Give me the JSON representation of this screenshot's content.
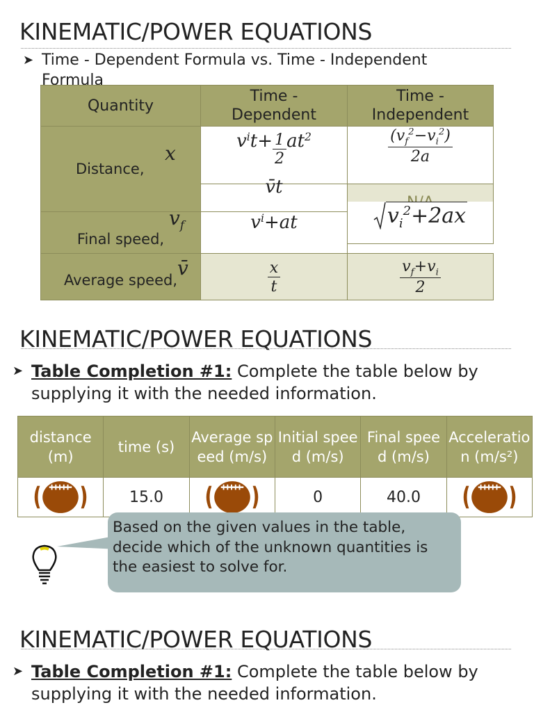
{
  "slides": [
    {
      "title": "KINEMATIC/POWER EQUATIONS",
      "bullet": "Time - Dependent Formula vs. Time - Independent Formula",
      "table": {
        "header": [
          "Quantity",
          "Time - Dependent",
          "Time - Independent"
        ],
        "rows": [
          {
            "quantity": "Distance,",
            "symbol": [
              "x"
            ],
            "dependent": [
              "v",
              {
                "sub": "i"
              },
              "t+",
              {
                "num": [
                  "1"
                ],
                "den": [
                  "2"
                ]
              },
              "at",
              {
                "sup": "2"
              }
            ],
            "independent": [
              {
                "num": [
                  "(v",
                  {
                    "sub": "f"
                  },
                  {
                    "sup": "2"
                  },
                  "−v",
                  {
                    "sub": "i"
                  },
                  {
                    "sup": "2"
                  },
                  ")"
                ],
                "den": [
                  "2a"
                ]
              }
            ]
          },
          {
            "dependent": [
              "v̄t"
            ],
            "independent": [
              "N/A"
            ]
          },
          {
            "quantity": "Final speed,",
            "symbol": [
              "v",
              {
                "sub": "f"
              }
            ],
            "dependent": [
              "v",
              {
                "sub": "i"
              },
              "+at"
            ],
            "independent": [
              {
                "sqrt": [
                  "v",
                  {
                    "sub": "i"
                  },
                  {
                    "sup": "2"
                  },
                  "+2ax"
                ]
              }
            ]
          },
          {
            "quantity": "Average speed,",
            "symbol": [
              "v̄"
            ],
            "dependent": [
              {
                "num": [
                  "x"
                ],
                "den": [
                  "t"
                ]
              }
            ],
            "independent": [
              {
                "num": [
                  "v",
                  {
                    "sub": "f"
                  },
                  "+v",
                  {
                    "sub": "i"
                  }
                ],
                "den": [
                  "2"
                ]
              }
            ]
          }
        ]
      }
    },
    {
      "title": "KINEMATIC/POWER EQUATIONS",
      "bullet_bold": "Table Completion #1:",
      "bullet_text": "Complete the table below by supplying it with the needed information.",
      "table": {
        "header": [
          "distance (m)",
          "time (s)",
          "Average speed (m/s)",
          "Initial speed (m/s)",
          "Final speed (m/s)",
          "Acceleration (m/s²)"
        ],
        "row": [
          null,
          "15.0",
          null,
          "0",
          "40.0",
          null
        ]
      },
      "callout": "Based on the given values in the table, decide which of the unknown quantities is the easiest to solve for."
    },
    {
      "title": "KINEMATIC/POWER EQUATIONS",
      "bullet_bold": "Table Completion #1:",
      "bullet_text": "Complete the table below by supplying it with the needed information."
    }
  ]
}
